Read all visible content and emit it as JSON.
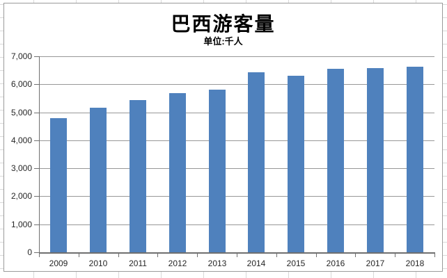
{
  "title": "巴西游客量",
  "subtitle": "单位:千人",
  "chart_data": {
    "type": "bar",
    "title": "巴西游客量",
    "subtitle": "单位:千人",
    "categories": [
      "2009",
      "2010",
      "2011",
      "2012",
      "2013",
      "2014",
      "2015",
      "2016",
      "2017",
      "2018"
    ],
    "values": [
      4802,
      5161,
      5433,
      5677,
      5813,
      6430,
      6306,
      6547,
      6589,
      6621
    ],
    "xlabel": "",
    "ylabel": "",
    "ylim": [
      0,
      7000
    ],
    "ytick_interval": 1000,
    "ytick_labels": [
      "0",
      "1,000",
      "2,000",
      "3,000",
      "4,000",
      "5,000",
      "6,000",
      "7,000"
    ],
    "grid": "horizontal",
    "legend": "none",
    "bar_color": "#4F81BD",
    "gridline_color": "#979797",
    "axis_color": "#6f6f6f"
  }
}
